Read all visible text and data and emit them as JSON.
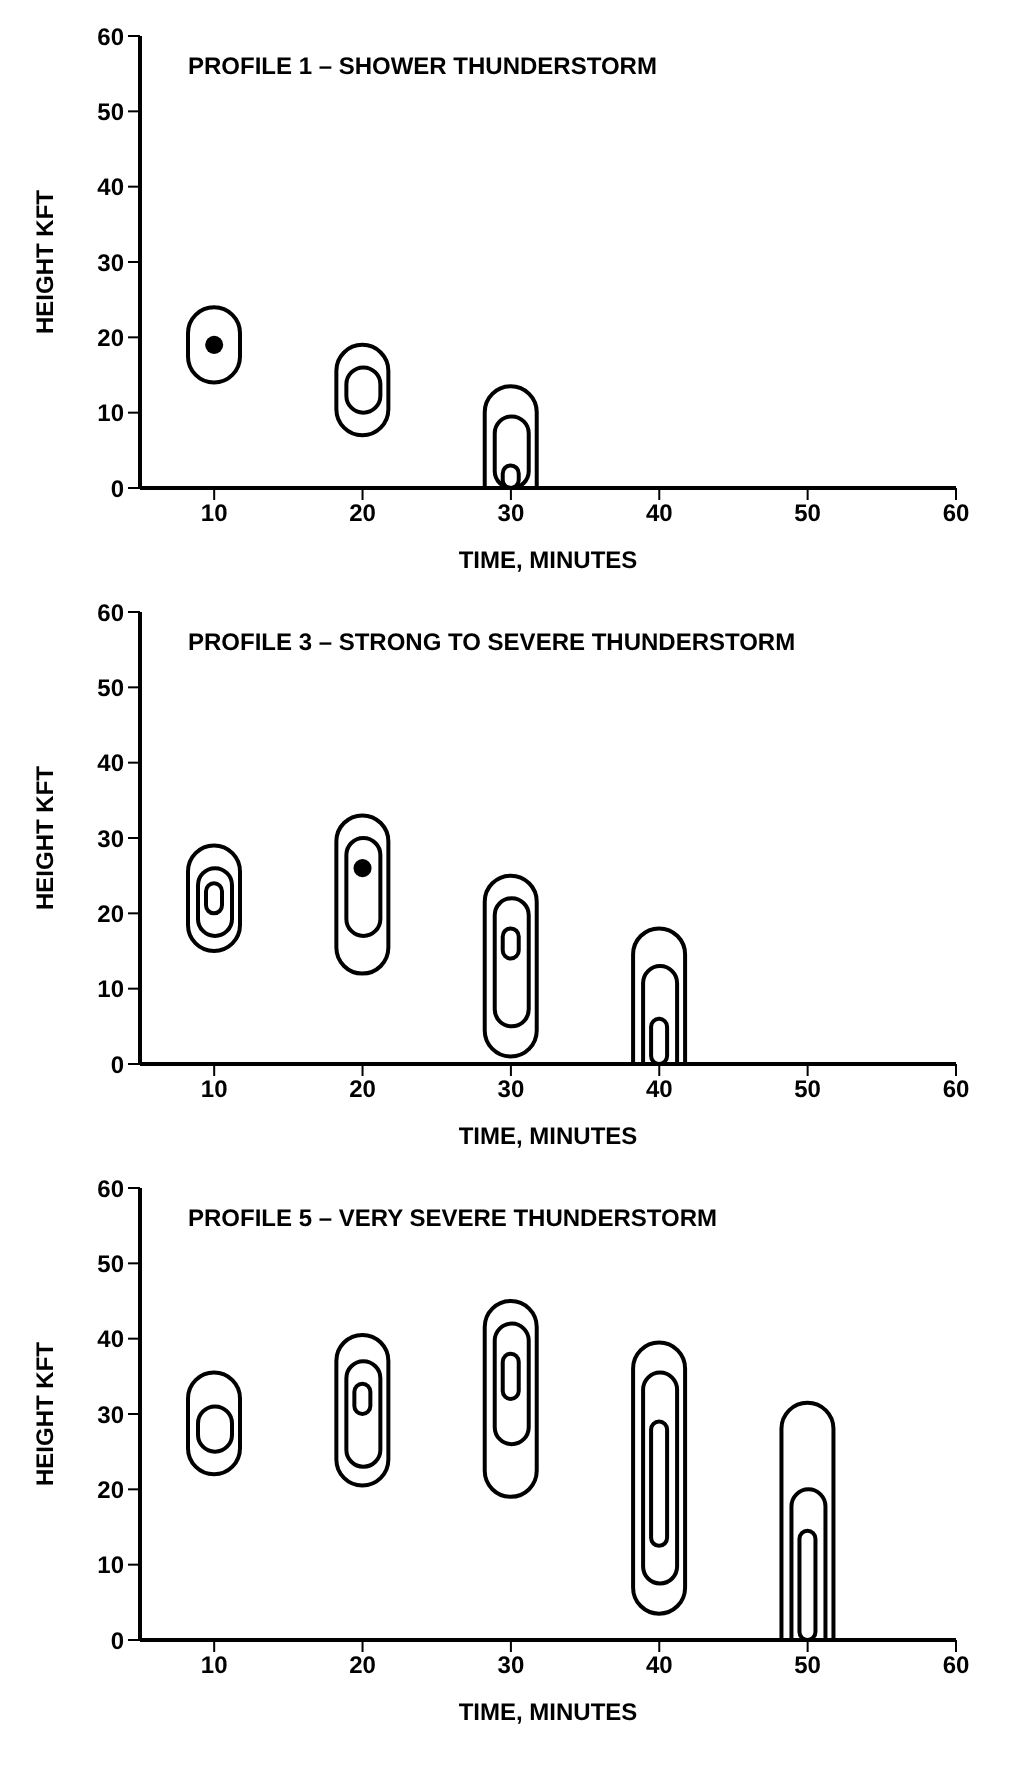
{
  "chart_data": [
    {
      "type": "bar",
      "title": "PROFILE 1 – SHOWER THUNDERSTORM",
      "xlabel": "TIME, MINUTES",
      "ylabel": "HEIGHT KFT",
      "x": [
        10,
        20,
        30
      ],
      "xlim": [
        5,
        60
      ],
      "xticks": [
        10,
        20,
        30,
        40,
        50,
        60
      ],
      "ylim": [
        0,
        60
      ],
      "yticks": [
        0,
        10,
        20,
        30,
        40,
        50,
        60
      ],
      "grid": false,
      "legend": false,
      "series": [
        {
          "color": "#000000",
          "base": [
            14,
            7,
            0
          ],
          "values": [
            10,
            12,
            13.5
          ]
        },
        {
          "color": "#000000",
          "base": [
            null,
            10,
            0
          ],
          "values": [
            null,
            6,
            9.5
          ]
        },
        {
          "color": "#000000",
          "base": [
            null,
            null,
            0
          ],
          "values": [
            null,
            null,
            3
          ]
        },
        {
          "type": "scatter",
          "color": "#000000",
          "x": [
            10
          ],
          "values": [
            19
          ]
        }
      ]
    },
    {
      "type": "bar",
      "title": "PROFILE 3 – STRONG TO SEVERE THUNDERSTORM",
      "xlabel": "TIME, MINUTES",
      "ylabel": "HEIGHT KFT",
      "x": [
        10,
        20,
        30,
        40
      ],
      "xlim": [
        5,
        60
      ],
      "xticks": [
        10,
        20,
        30,
        40,
        50,
        60
      ],
      "ylim": [
        0,
        60
      ],
      "yticks": [
        0,
        10,
        20,
        30,
        40,
        50,
        60
      ],
      "grid": false,
      "legend": false,
      "series": [
        {
          "color": "#000000",
          "base": [
            15,
            12,
            1,
            0
          ],
          "values": [
            14,
            21,
            24,
            18
          ]
        },
        {
          "color": "#000000",
          "base": [
            17,
            17,
            5,
            0
          ],
          "values": [
            9,
            13,
            17,
            13
          ]
        },
        {
          "color": "#000000",
          "base": [
            20,
            null,
            14,
            0
          ],
          "values": [
            4,
            null,
            4,
            6
          ]
        },
        {
          "type": "scatter",
          "color": "#000000",
          "x": [
            20
          ],
          "values": [
            26
          ]
        }
      ]
    },
    {
      "type": "bar",
      "title": "PROFILE 5 – VERY SEVERE THUNDERSTORM",
      "xlabel": "TIME, MINUTES",
      "ylabel": "HEIGHT KFT",
      "x": [
        10,
        20,
        30,
        40,
        50
      ],
      "xlim": [
        5,
        60
      ],
      "xticks": [
        10,
        20,
        30,
        40,
        50,
        60
      ],
      "ylim": [
        0,
        60
      ],
      "yticks": [
        0,
        10,
        20,
        30,
        40,
        50,
        60
      ],
      "grid": false,
      "legend": false,
      "series": [
        {
          "color": "#000000",
          "base": [
            22,
            20.5,
            19,
            3.5,
            0
          ],
          "values": [
            13.5,
            20,
            26,
            36,
            31.5
          ]
        },
        {
          "color": "#000000",
          "base": [
            25,
            23,
            26,
            7.5,
            0
          ],
          "values": [
            6,
            14,
            16,
            28,
            20
          ]
        },
        {
          "color": "#000000",
          "base": [
            null,
            30,
            32,
            12.5,
            0
          ],
          "values": [
            null,
            4,
            6,
            16.5,
            14.5
          ]
        }
      ]
    }
  ]
}
